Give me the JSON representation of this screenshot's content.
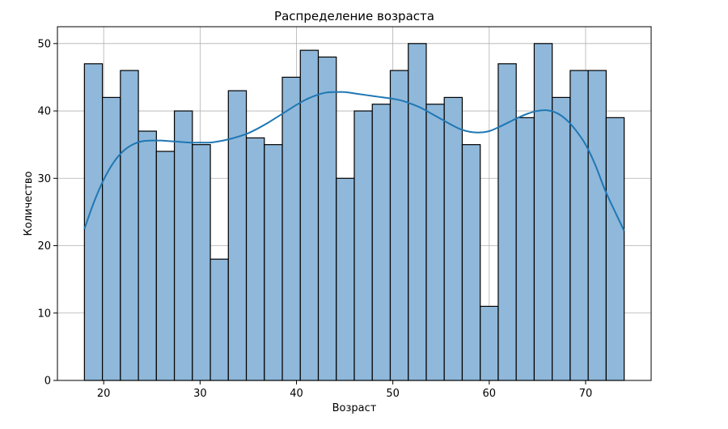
{
  "chart_data": {
    "type": "bar",
    "title": "Распределение возраста",
    "xlabel": "Возраст",
    "ylabel": "Количество",
    "xlim": [
      15.2,
      76.8
    ],
    "ylim": [
      0,
      52.5
    ],
    "xticks": [
      20,
      30,
      40,
      50,
      60,
      70
    ],
    "yticks": [
      0,
      10,
      20,
      30,
      40,
      50
    ],
    "grid": true,
    "bin_edges": [
      18,
      19.867,
      21.733,
      23.6,
      25.467,
      27.333,
      29.2,
      31.067,
      32.933,
      34.8,
      36.667,
      38.533,
      40.4,
      42.267,
      44.133,
      46,
      47.867,
      49.733,
      51.6,
      53.467,
      55.333,
      57.2,
      59.067,
      60.933,
      62.8,
      64.667,
      66.533,
      68.4,
      70.267,
      72.133,
      74
    ],
    "values": [
      47,
      42,
      46,
      37,
      34,
      40,
      35,
      18,
      43,
      36,
      35,
      45,
      49,
      48,
      30,
      40,
      41,
      46,
      50,
      41,
      42,
      35,
      11,
      47,
      39,
      50,
      42,
      46,
      46,
      39
    ],
    "kde": {
      "x": [
        18,
        19,
        20,
        21,
        22,
        23,
        24,
        25,
        26,
        27,
        28,
        29,
        30,
        31,
        32,
        33,
        34,
        35,
        36,
        37,
        38,
        39,
        40,
        41,
        42,
        43,
        44,
        45,
        46,
        47,
        48,
        49,
        50,
        51,
        52,
        53,
        54,
        55,
        56,
        57,
        58,
        59,
        60,
        61,
        62,
        63,
        64,
        65,
        66,
        67,
        68,
        69,
        70,
        71,
        72,
        73,
        74
      ],
      "y": [
        22.5,
        26.5,
        29.8,
        32.3,
        34.0,
        35.0,
        35.5,
        35.6,
        35.6,
        35.5,
        35.4,
        35.3,
        35.3,
        35.3,
        35.5,
        35.8,
        36.2,
        36.7,
        37.4,
        38.2,
        39.1,
        40.0,
        40.9,
        41.7,
        42.3,
        42.7,
        42.8,
        42.8,
        42.6,
        42.4,
        42.2,
        42.0,
        41.8,
        41.5,
        41.0,
        40.4,
        39.6,
        38.8,
        38.0,
        37.3,
        36.9,
        36.8,
        37.0,
        37.6,
        38.3,
        39.0,
        39.6,
        40.0,
        40.1,
        39.7,
        38.7,
        37.1,
        35.0,
        32.0,
        28.3,
        25.2,
        22.2
      ]
    },
    "colors": {
      "bar_fill": "#8fb8da",
      "bar_edge": "#000000",
      "kde_line": "#1f77b4",
      "grid": "#b0b0b0"
    }
  }
}
